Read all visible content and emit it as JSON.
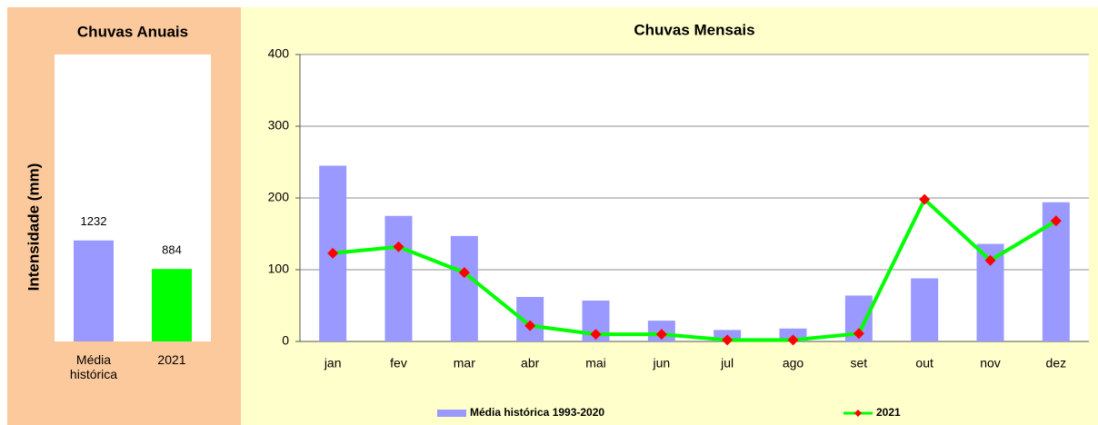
{
  "chart_data": [
    {
      "type": "bar",
      "title": "Chuvas Anuais",
      "y_label": "Intensidade (mm)",
      "categories": [
        "Média histórica",
        "2021"
      ],
      "values": [
        1232,
        884
      ],
      "colors": [
        "#9999ff",
        "#00ff00"
      ],
      "ylim": [
        0,
        3500
      ]
    },
    {
      "type": "combo",
      "title": "Chuvas Mensais",
      "categories": [
        "jan",
        "fev",
        "mar",
        "abr",
        "mai",
        "jun",
        "jul",
        "ago",
        "set",
        "out",
        "nov",
        "dez"
      ],
      "series": [
        {
          "name": "Média histórica 1993-2020",
          "kind": "bar",
          "color": "#9999ff",
          "values": [
            245,
            175,
            147,
            62,
            57,
            29,
            16,
            18,
            64,
            88,
            136,
            194
          ]
        },
        {
          "name": "2021",
          "kind": "line",
          "color": "#00ff00",
          "marker_color": "#ff0000",
          "values": [
            123,
            132,
            96,
            22,
            10,
            10,
            2,
            2,
            11,
            198,
            113,
            168
          ]
        }
      ],
      "ylim": [
        0,
        400
      ],
      "yticks": [
        0,
        100,
        200,
        300,
        400
      ],
      "grid": true,
      "legend": "bottom"
    }
  ]
}
